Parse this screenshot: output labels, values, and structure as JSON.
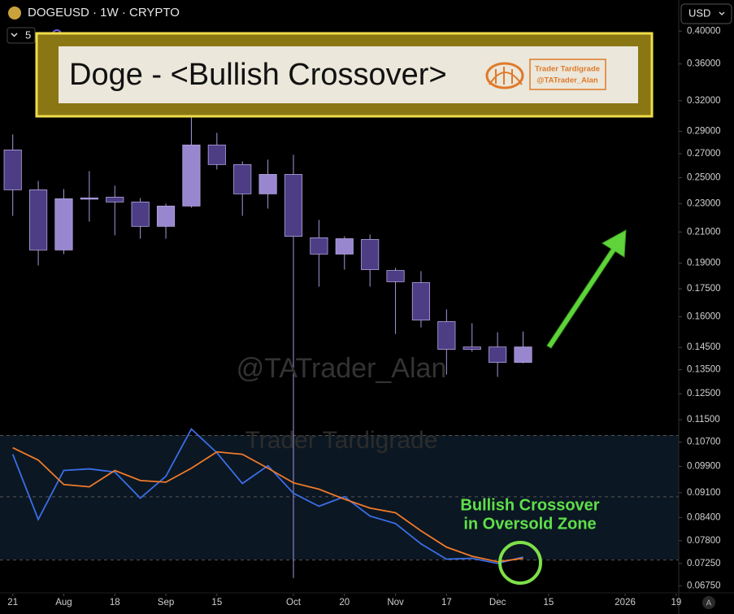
{
  "header": {
    "symbol": "DOGEUSD · 1W · CRYPTO",
    "indicator_count": "5",
    "currency": "USD",
    "scale_mode": "A"
  },
  "banner": {
    "title": "Doge - <Bullish Crossover>",
    "author": "Trader Tardigrade",
    "handle": "@TATrader_Alan"
  },
  "watermarks": [
    "@TATrader_Alan",
    "Trader Tardigrade"
  ],
  "chart_data": {
    "type": "candlestick",
    "log_scale": true,
    "x": [
      0,
      1,
      2,
      3,
      4,
      5,
      6,
      7,
      8,
      9,
      10,
      11,
      12,
      13,
      14,
      15,
      16,
      17,
      18,
      19,
      20
    ],
    "xlim": [
      -0.5,
      26.1
    ],
    "xticks": [
      {
        "value": 0,
        "label": "21"
      },
      {
        "value": 2,
        "label": "Aug"
      },
      {
        "value": 4,
        "label": "18"
      },
      {
        "value": 6,
        "label": "Sep"
      },
      {
        "value": 8,
        "label": "15"
      },
      {
        "value": 11,
        "label": "Oct"
      },
      {
        "value": 13,
        "label": "20"
      },
      {
        "value": 15,
        "label": "Nov"
      },
      {
        "value": 17,
        "label": "17"
      },
      {
        "value": 19,
        "label": "Dec"
      },
      {
        "value": 21,
        "label": "15"
      },
      {
        "value": 24,
        "label": "2026"
      },
      {
        "value": 26,
        "label": "19"
      }
    ],
    "ylim": [
      0.0658,
      0.442
    ],
    "yticks": [
      {
        "value": 0.4,
        "label": "0.40000"
      },
      {
        "value": 0.36,
        "label": "0.36000"
      },
      {
        "value": 0.32,
        "label": "0.32000"
      },
      {
        "value": 0.29,
        "label": "0.29000"
      },
      {
        "value": 0.27,
        "label": "0.27000"
      },
      {
        "value": 0.25,
        "label": "0.25000"
      },
      {
        "value": 0.23,
        "label": "0.23000"
      },
      {
        "value": 0.21,
        "label": "0.21000"
      },
      {
        "value": 0.19,
        "label": "0.19000"
      },
      {
        "value": 0.175,
        "label": "0.17500"
      },
      {
        "value": 0.16,
        "label": "0.16000"
      },
      {
        "value": 0.145,
        "label": "0.14500"
      },
      {
        "value": 0.135,
        "label": "0.13500"
      },
      {
        "value": 0.125,
        "label": "0.12500"
      },
      {
        "value": 0.115,
        "label": "0.11500"
      },
      {
        "value": 0.107,
        "label": "0.10700"
      },
      {
        "value": 0.099,
        "label": "0.09900"
      },
      {
        "value": 0.091,
        "label": "0.09100"
      },
      {
        "value": 0.084,
        "label": "0.08400"
      },
      {
        "value": 0.078,
        "label": "0.07800"
      },
      {
        "value": 0.0725,
        "label": "0.07250"
      },
      {
        "value": 0.0675,
        "label": "0.06750"
      }
    ],
    "open": [
      0.2732,
      0.2404,
      0.1982,
      0.2336,
      0.2348,
      0.2312,
      0.2138,
      0.2282,
      0.2776,
      0.2607,
      0.2373,
      0.2526,
      0.2061,
      0.1956,
      0.205,
      0.1856,
      0.1785,
      0.1575,
      0.1452,
      0.1452,
      0.1382
    ],
    "high": [
      0.2871,
      0.2474,
      0.241,
      0.2553,
      0.2436,
      0.2342,
      0.23,
      0.3065,
      0.2886,
      0.2634,
      0.2648,
      0.269,
      0.2183,
      0.2071,
      0.2083,
      0.1871,
      0.1852,
      0.1638,
      0.1567,
      0.1522,
      0.1526
    ],
    "low": [
      0.2211,
      0.1886,
      0.1956,
      0.2171,
      0.2077,
      0.2055,
      0.2055,
      0.227,
      0.2566,
      0.2211,
      0.2264,
      0.0692,
      0.1762,
      0.1861,
      0.1762,
      0.1514,
      0.1546,
      0.1329,
      0.143,
      0.1319,
      0.1378
    ],
    "close": [
      0.2404,
      0.1982,
      0.2336,
      0.2342,
      0.2312,
      0.2138,
      0.2282,
      0.2776,
      0.2607,
      0.2373,
      0.2526,
      0.2071,
      0.1956,
      0.2055,
      0.1861,
      0.179,
      0.1583,
      0.1441,
      0.1441,
      0.1382,
      0.1452
    ],
    "up_color": "#9886cf",
    "down_color": "#4d3d85",
    "lines": [
      {
        "color": "#3a6ee8",
        "values": [
          0.1029,
          0.0835,
          0.0977,
          0.0982,
          0.0972,
          0.0894,
          0.0959,
          0.1116,
          0.1034,
          0.0937,
          0.0992,
          0.0908,
          0.0871,
          0.0898,
          0.0844,
          0.0824,
          0.0772,
          0.0735,
          0.0737,
          0.0725,
          0.074
        ]
      },
      {
        "color": "#f07a2a",
        "values": [
          0.1051,
          0.101,
          0.0934,
          0.0927,
          0.0977,
          0.0946,
          0.0941,
          0.0984,
          0.1037,
          0.1029,
          0.0984,
          0.0939,
          0.092,
          0.0891,
          0.0866,
          0.0853,
          0.0805,
          0.0764,
          0.0742,
          0.0729,
          0.0737
        ]
      }
    ],
    "zone_levels": [
      0.1093,
      0.0898,
      0.0733
    ],
    "annotation": [
      "Bullish Crossover",
      "in Oversold Zone"
    ]
  }
}
